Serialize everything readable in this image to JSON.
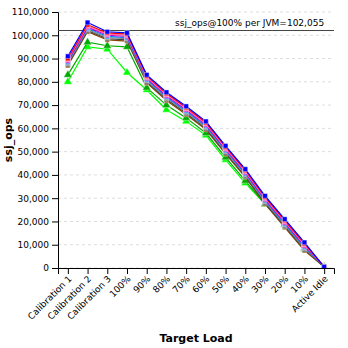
{
  "chart_data": {
    "type": "line",
    "xlabel": "Target Load",
    "ylabel": "ssj_ops",
    "annotations": [
      {
        "text": "ssj_ops@100% per JVM=102,055",
        "y": 102055
      }
    ],
    "categories": [
      "Calibration 1",
      "Calibration 2",
      "Calibration 3",
      "100%",
      "90%",
      "80%",
      "70%",
      "60%",
      "50%",
      "40%",
      "30%",
      "20%",
      "10%",
      "Active Idle"
    ],
    "series": [
      {
        "color": "#0000ff",
        "marker": "square",
        "values": [
          91000,
          105500,
          101500,
          101000,
          83000,
          75500,
          69500,
          63000,
          52500,
          42500,
          31000,
          21000,
          11000,
          500
        ]
      },
      {
        "color": "#ff0000",
        "marker": "square",
        "values": [
          90000,
          104500,
          101000,
          100500,
          82500,
          75000,
          69000,
          62500,
          52000,
          42000,
          30500,
          20500,
          10500,
          600
        ]
      },
      {
        "color": "#ff69b4",
        "marker": "square",
        "values": [
          89500,
          104000,
          100500,
          100000,
          82000,
          74500,
          68500,
          62000,
          51500,
          41500,
          30000,
          20000,
          10000,
          600
        ]
      },
      {
        "color": "#cc00cc",
        "marker": "square",
        "values": [
          89000,
          103500,
          100000,
          99500,
          81500,
          74000,
          68000,
          61500,
          51000,
          41000,
          29500,
          19500,
          9500,
          600
        ]
      },
      {
        "color": "#0088ff",
        "marker": "square",
        "values": [
          88500,
          103000,
          99500,
          99000,
          81000,
          73500,
          67500,
          61000,
          50500,
          40500,
          29000,
          19000,
          9000,
          700
        ]
      },
      {
        "color": "#888888",
        "marker": "square",
        "values": [
          88000,
          102500,
          99000,
          98500,
          80500,
          73000,
          67000,
          60500,
          50000,
          40000,
          28500,
          18500,
          8500,
          700
        ]
      },
      {
        "color": "#444444",
        "marker": "square",
        "values": [
          87500,
          102000,
          98500,
          98000,
          80000,
          72500,
          66500,
          60000,
          49500,
          39500,
          28000,
          18000,
          8000,
          600
        ]
      },
      {
        "color": "#884400",
        "marker": "square",
        "values": [
          87000,
          101500,
          98000,
          97500,
          79500,
          72000,
          66000,
          59500,
          49000,
          39000,
          27500,
          17500,
          7500,
          500
        ]
      },
      {
        "color": "#00aa00",
        "marker": "triangle",
        "values": [
          83000,
          97000,
          95500,
          95000,
          77500,
          70000,
          64500,
          58000,
          47500,
          37500,
          27500,
          19000,
          8500,
          400
        ]
      },
      {
        "color": "#00ff00",
        "marker": "triangle",
        "values": [
          80000,
          95000,
          94000,
          84000,
          76500,
          68000,
          63000,
          57000,
          46500,
          36500,
          27500,
          18500,
          8000,
          300
        ]
      }
    ],
    "ylim": [
      0,
      110000
    ],
    "yticks": [
      0,
      {
        "value": 10000,
        "label": "10,000"
      },
      {
        "value": 20000,
        "label": "20,000"
      },
      {
        "value": 30000,
        "label": "30,000"
      },
      {
        "value": 40000,
        "label": "40,000"
      },
      {
        "value": 50000,
        "label": "50,000"
      },
      {
        "value": 60000,
        "label": "60,000"
      },
      {
        "value": 70000,
        "label": "70,000"
      },
      {
        "value": 80000,
        "label": "80,000"
      },
      {
        "value": 90000,
        "label": "90,000"
      },
      {
        "value": 100000,
        "label": "100,000"
      },
      {
        "value": 110000,
        "label": "110,000"
      }
    ],
    "grid": true
  }
}
